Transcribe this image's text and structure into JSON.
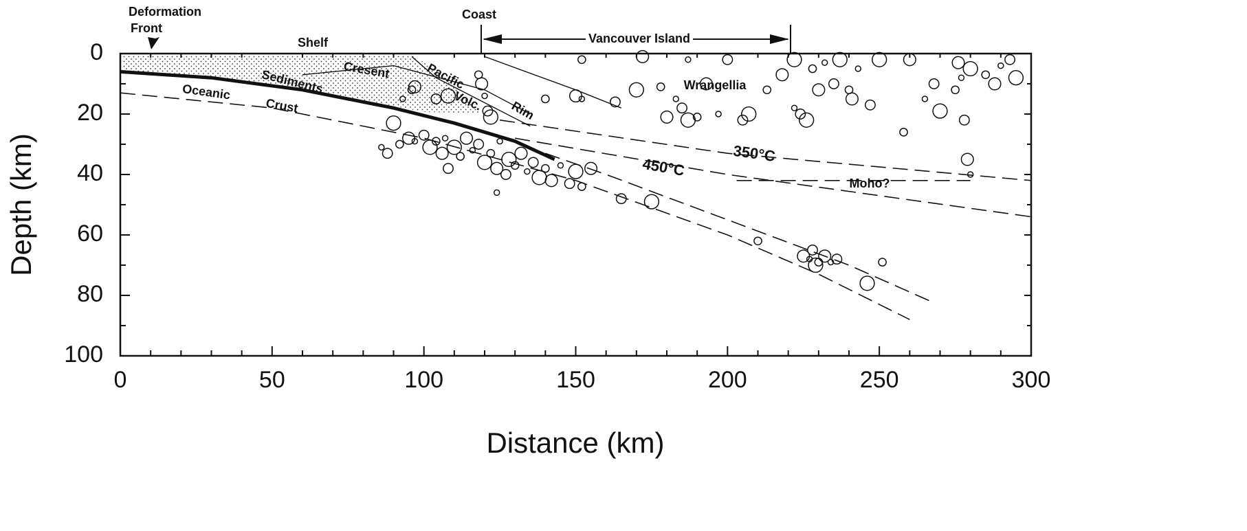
{
  "chart_data": {
    "type": "scatter",
    "x_label": "Distance (km)",
    "y_label": "Depth (km)",
    "xlim": [
      0,
      300
    ],
    "ylim": [
      0,
      100
    ],
    "y_inverted": true,
    "xticks": [
      0,
      50,
      100,
      150,
      200,
      250,
      300
    ],
    "yticks": [
      0,
      20,
      40,
      60,
      80,
      100
    ],
    "xminorticks": [
      10,
      20,
      30,
      40,
      60,
      70,
      80,
      90,
      110,
      120,
      130,
      140,
      160,
      170,
      180,
      190,
      210,
      220,
      230,
      240,
      260,
      270,
      280,
      290
    ],
    "yminorticks": [
      10,
      30,
      50,
      70,
      90
    ],
    "color": "#111111",
    "x": [
      86,
      88,
      90,
      92,
      95,
      97,
      100,
      102,
      104,
      106,
      107,
      108,
      110,
      112,
      114,
      116,
      118,
      120,
      122,
      124,
      125,
      127,
      128,
      130,
      132,
      134,
      136,
      138,
      140,
      142,
      145,
      148,
      150,
      152,
      155,
      124,
      165,
      175,
      118,
      119,
      120,
      121,
      122,
      96,
      97,
      93,
      104,
      108,
      140,
      150,
      152,
      163,
      170,
      178,
      180,
      183,
      185,
      187,
      190,
      193,
      197,
      205,
      207,
      213,
      218,
      222,
      224,
      226,
      228,
      230,
      232,
      235,
      237,
      240,
      241,
      243,
      247,
      250,
      258,
      260,
      265,
      268,
      270,
      275,
      276,
      277,
      278,
      280,
      285,
      288,
      290,
      293,
      295,
      152,
      172,
      187,
      200,
      222,
      210,
      225,
      227,
      228,
      229,
      230,
      232,
      234,
      236,
      246,
      251,
      279,
      280
    ],
    "values": [
      31,
      33,
      23,
      30,
      28,
      29,
      27,
      31,
      29,
      33,
      28,
      38,
      31,
      34,
      28,
      32,
      30,
      36,
      33,
      38,
      29,
      40,
      35,
      37,
      33,
      39,
      36,
      41,
      38,
      42,
      37,
      43,
      39,
      44,
      38,
      46,
      48,
      49,
      7,
      10,
      14,
      19,
      21,
      12,
      11,
      15,
      15,
      14,
      15,
      14,
      15,
      16,
      12,
      11,
      21,
      15,
      18,
      22,
      21,
      10,
      20,
      22,
      20,
      12,
      7,
      18,
      20,
      22,
      5,
      12,
      3,
      10,
      2,
      12,
      15,
      5,
      17,
      2,
      26,
      2,
      15,
      10,
      19,
      12,
      3,
      8,
      22,
      5,
      7,
      10,
      4,
      2,
      8,
      2,
      1,
      2,
      2,
      2,
      62,
      67,
      68,
      65,
      70,
      69,
      67,
      69,
      68,
      76,
      69,
      35,
      40
    ],
    "curves": [
      {
        "style": "thick",
        "x": [
          0,
          30,
          60,
          90,
          110,
          130,
          143
        ],
        "values": [
          6,
          8,
          12,
          18,
          23,
          29,
          35
        ]
      },
      {
        "style": "dashed",
        "x": [
          0,
          50,
          100,
          150,
          200,
          230,
          260
        ],
        "values": [
          13,
          18,
          28,
          42,
          60,
          73,
          88
        ]
      },
      {
        "style": "dashed",
        "x": [
          140,
          160,
          200,
          240,
          267
        ],
        "values": [
          33,
          40,
          55,
          70,
          82
        ]
      },
      {
        "style": "dashed",
        "x": [
          125,
          200,
          300
        ],
        "values": [
          22,
          33,
          42
        ]
      },
      {
        "style": "dashed",
        "x": [
          130,
          200,
          300
        ],
        "values": [
          28,
          40,
          54
        ]
      },
      {
        "style": "dashed",
        "x": [
          203,
          280
        ],
        "values": [
          42,
          42
        ]
      },
      {
        "style": "solid",
        "x": [
          0,
          300
        ],
        "values": [
          0,
          0
        ]
      },
      {
        "style": "solid",
        "x": [
          96,
          104,
          135
        ],
        "values": [
          1,
          8,
          24
        ]
      },
      {
        "style": "solid",
        "x": [
          120,
          150,
          165
        ],
        "values": [
          1,
          12,
          18
        ]
      },
      {
        "style": "solid",
        "x": [
          60,
          90,
          120,
          135
        ],
        "values": [
          7,
          4,
          12,
          20
        ]
      }
    ],
    "annotations": [
      "Deformation",
      "Front",
      "Shelf",
      "Coast",
      "Vancouver Island",
      "Sediments",
      "Cresent",
      "Pacific",
      "Volc.",
      "Rim",
      "Oceanic",
      "Crust",
      "Wrangellia",
      "350°C",
      "450°C",
      "Moho?"
    ]
  }
}
